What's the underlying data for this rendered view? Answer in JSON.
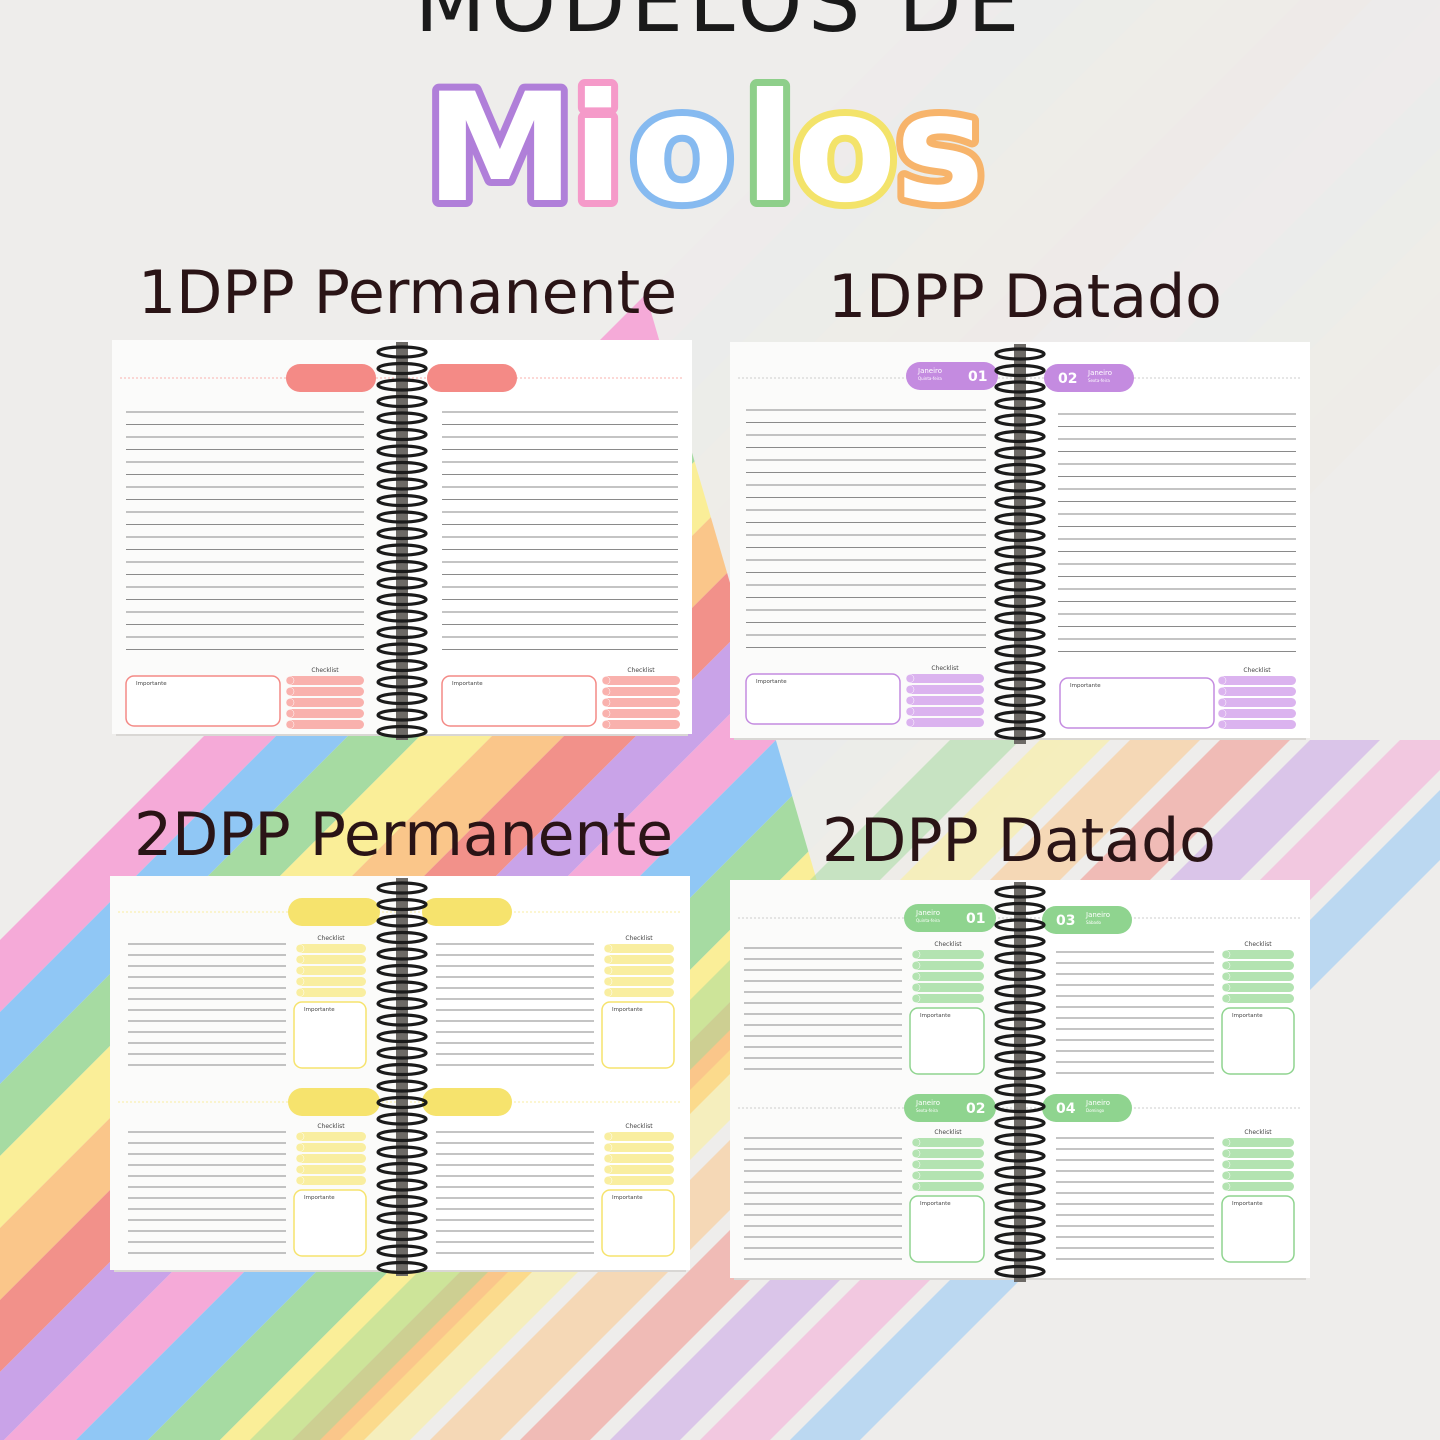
{
  "header": {
    "title_top": "MODELOS DE",
    "title_main": "Miolos"
  },
  "models": [
    {
      "title": "1DPP Permanente",
      "accent": "#f48a86",
      "light": "#f9b1ad",
      "tab_left": "",
      "tab_right": "",
      "important_label": "Importante",
      "checklist_label": "Checklist"
    },
    {
      "title": "1DPP Datado",
      "accent": "#c48be0",
      "light": "#dbb3ef",
      "tab_left": {
        "month": "Janeiro",
        "weekday": "Quinta-feira",
        "day": "01"
      },
      "tab_right": {
        "month": "Janeiro",
        "weekday": "Sexta-feira",
        "day": "02"
      },
      "important_label": "Importante",
      "checklist_label": "Checklist"
    },
    {
      "title": "2DPP Permanente",
      "accent": "#f6e36d",
      "light": "#f9eea0",
      "tab_left": "",
      "tab_right": "",
      "important_label": "Importante",
      "checklist_label": "Checklist"
    },
    {
      "title": "2DPP Datado",
      "accent": "#8fd48f",
      "light": "#b3e3b1",
      "tabs": [
        {
          "month": "Janeiro",
          "weekday": "Quinta-feira",
          "day": "01"
        },
        {
          "month": "Janeiro",
          "weekday": "Sábado",
          "day": "03"
        },
        {
          "month": "Janeiro",
          "weekday": "Sexta-feira",
          "day": "02"
        },
        {
          "month": "Janeiro",
          "weekday": "Domingo",
          "day": "04"
        }
      ],
      "important_label": "Importante",
      "checklist_label": "Checklist"
    }
  ],
  "colors": {
    "stripes": [
      "#f6a2d6",
      "#86c3f5",
      "#9ed99a",
      "#fbee8e",
      "#fbc27f",
      "#f2877f",
      "#c59be8"
    ],
    "ink": "#2a1416"
  }
}
